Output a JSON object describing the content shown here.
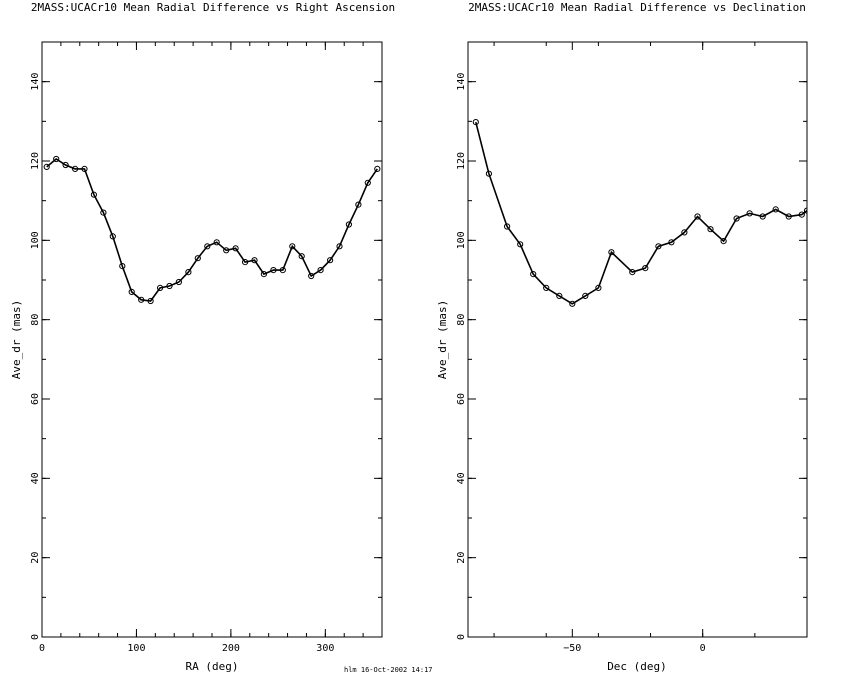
{
  "footer_stamp": "hlm 16-Oct-2002 14:17",
  "chart_data": [
    {
      "type": "line",
      "title": "2MASS:UCACr10 Mean Radial Difference vs Right Ascension",
      "xlabel": "RA (deg)",
      "ylabel": "Ave_dr (mas)",
      "xlim": [
        0,
        360
      ],
      "ylim": [
        0,
        150
      ],
      "xticks": [
        0,
        100,
        200,
        300
      ],
      "yticks": [
        0,
        20,
        40,
        60,
        80,
        100,
        120,
        140
      ],
      "grid": false,
      "series": [
        {
          "x": [
            5,
            15,
            25,
            35,
            45,
            55,
            65,
            75,
            85,
            95,
            105,
            115,
            125,
            135,
            145,
            155,
            165,
            175,
            185,
            195,
            205,
            215,
            225,
            235,
            245,
            255,
            265,
            275,
            285,
            295,
            305,
            315,
            325,
            335,
            345,
            355
          ],
          "y": [
            118.5,
            120.5,
            119,
            118,
            118,
            111.5,
            107,
            101,
            93.5,
            87,
            85,
            84.7,
            88,
            88.5,
            89.5,
            92,
            95.5,
            98.5,
            99.5,
            97.5,
            98,
            94.5,
            95,
            91.5,
            92.5,
            92.5,
            98.5,
            96,
            91,
            92.5,
            95,
            98.5,
            104,
            109,
            114.5,
            118
          ]
        }
      ]
    },
    {
      "type": "line",
      "title": "2MASS:UCACr10 Mean Radial Difference vs Declination",
      "xlabel": "Dec (deg)",
      "ylabel": "Ave_dr (mas)",
      "xlim": [
        -90,
        40
      ],
      "ylim": [
        0,
        150
      ],
      "xticks": [
        -50,
        0
      ],
      "yticks": [
        0,
        20,
        40,
        60,
        80,
        100,
        120,
        140
      ],
      "grid": false,
      "series": [
        {
          "x": [
            -87,
            -82,
            -75,
            -70,
            -65,
            -60,
            -55,
            -50,
            -45,
            -40,
            -35,
            -27,
            -22,
            -17,
            -12,
            -7,
            -2,
            3,
            8,
            13,
            18,
            23,
            28,
            33,
            38,
            40
          ],
          "y": [
            129.8,
            116.8,
            103.5,
            99,
            91.5,
            88,
            86,
            84,
            86,
            88,
            97,
            92,
            93,
            98.5,
            99.5,
            102,
            106,
            102.8,
            99.8,
            105.5,
            106.8,
            106,
            107.8,
            106,
            106.5,
            107.5
          ]
        }
      ]
    }
  ]
}
